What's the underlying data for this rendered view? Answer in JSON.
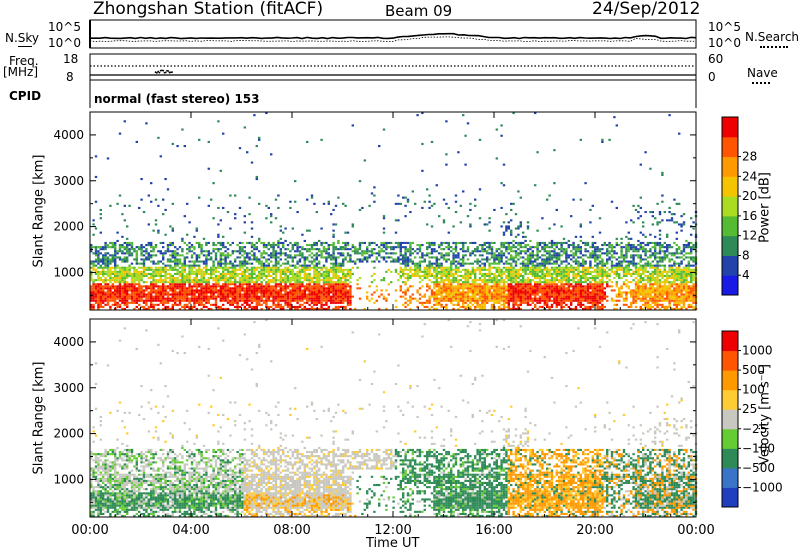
{
  "header": {
    "station": "Zhongshan Station (fitACF)",
    "beam": "Beam 09",
    "date": "24/Sep/2012"
  },
  "top_panels": {
    "nsky_label": "N.Sky",
    "nsearch_label": "N.Search",
    "nsky_ticks": [
      "10^5",
      "10^0"
    ],
    "nsearch_ticks": [
      "10^5",
      "10^0"
    ],
    "freq_label": "Freq.",
    "freq_unit": "[MHz]",
    "freq_ticks": [
      "18",
      "8"
    ],
    "nave_label": "Nave",
    "nave_ticks": [
      "60",
      "0"
    ],
    "cpid_label": "CPID",
    "cpid_text": "normal (fast stereo) 153"
  },
  "chart_data": [
    {
      "type": "heatmap",
      "title": "",
      "ylabel": "Slant Range [km]",
      "xlabel": "",
      "ylim": [
        180,
        4500
      ],
      "yticks": [
        "1000",
        "2000",
        "3000",
        "4000"
      ],
      "colorbar_label": "Power [dB]",
      "colorbar_ticks": [
        "4",
        "8",
        "12",
        "16",
        "20",
        "24",
        "28"
      ],
      "colorbar_colors": [
        "#1a1ae6",
        "#2244aa",
        "#2e8b57",
        "#55bb33",
        "#aadd22",
        "#f5c400",
        "#ff9900",
        "#ff5500",
        "#ee0000"
      ]
    },
    {
      "type": "heatmap",
      "title": "",
      "ylabel": "Slant Range [km]",
      "xlabel": "Time UT",
      "ylim": [
        180,
        4500
      ],
      "yticks": [
        "1000",
        "2000",
        "3000",
        "4000"
      ],
      "xticks": [
        "00:00",
        "04:00",
        "08:00",
        "12:00",
        "16:00",
        "20:00",
        "00:00"
      ],
      "colorbar_label": "Velocity [m s⁻¹]",
      "colorbar_ticks": [
        "1000",
        "500",
        "100",
        "25",
        "−25",
        "−100",
        "−500",
        "−1000"
      ],
      "colorbar_colors": [
        "#1f3fbf",
        "#3a74c9",
        "#2e8b57",
        "#66cc33",
        "#c8c8c0",
        "#ffcc33",
        "#ff9900",
        "#ff5500",
        "#ee0000"
      ]
    }
  ]
}
